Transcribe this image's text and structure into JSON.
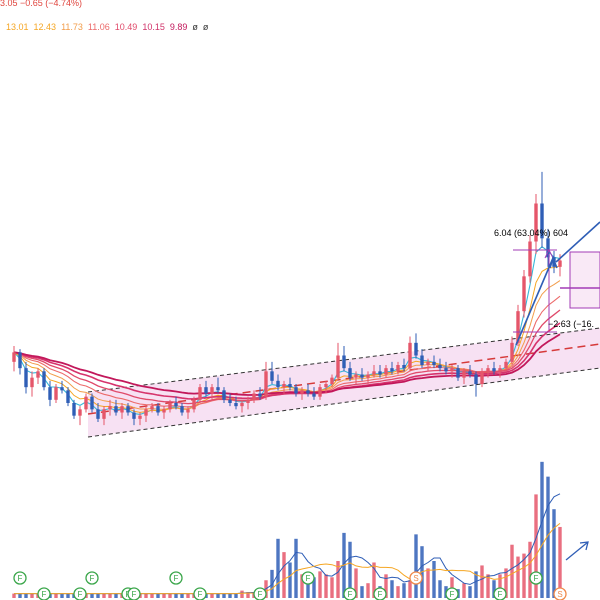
{
  "header": {
    "price_change": "3.05  −0.65 (−4.74%)",
    "ma_values": [
      {
        "text": "13.01",
        "color": "#f5a623"
      },
      {
        "text": "12.43",
        "color": "#f5a623"
      },
      {
        "text": "11.73",
        "color": "#f29d4b"
      },
      {
        "text": "11.06",
        "color": "#ec6a6a"
      },
      {
        "text": "10.49",
        "color": "#e04a6a"
      },
      {
        "text": "10.15",
        "color": "#d0346a"
      },
      {
        "text": "9.89",
        "color": "#c2185b"
      },
      {
        "text": "ø",
        "color": "#333333"
      },
      {
        "text": "ø",
        "color": "#333333"
      }
    ]
  },
  "annotations": {
    "rise_measure": "6.04 (63.04%) 604",
    "drop_measure": "−2.63 (−16."
  },
  "colors": {
    "up": "#e5566a",
    "down": "#2f5eb6",
    "channel_fill": "#f3d4ee",
    "ma_long": "#d6336c",
    "ma_short": "#f5a623",
    "measure": "#a23bb5",
    "arrow": "#2f5eb6",
    "event_badge": "#3aa64a"
  },
  "chart_data": {
    "type": "candlestick",
    "price_ylim": [
      6.5,
      15.5
    ],
    "candles": [
      [
        9.6,
        10.1,
        9.3,
        9.9
      ],
      [
        9.9,
        10.0,
        9.2,
        9.4
      ],
      [
        9.4,
        9.6,
        8.6,
        8.8
      ],
      [
        8.8,
        9.3,
        8.5,
        9.1
      ],
      [
        9.1,
        9.4,
        8.9,
        9.3
      ],
      [
        9.3,
        9.4,
        8.7,
        8.8
      ],
      [
        8.8,
        9.0,
        8.2,
        8.4
      ],
      [
        8.4,
        8.9,
        8.3,
        8.8
      ],
      [
        8.8,
        9.0,
        8.6,
        8.7
      ],
      [
        8.7,
        8.8,
        8.2,
        8.3
      ],
      [
        8.3,
        8.4,
        7.8,
        7.9
      ],
      [
        7.9,
        8.2,
        7.6,
        8.1
      ],
      [
        8.1,
        8.6,
        8.0,
        8.5
      ],
      [
        8.5,
        8.6,
        8.0,
        8.1
      ],
      [
        8.1,
        8.3,
        7.7,
        7.8
      ],
      [
        7.8,
        8.2,
        7.6,
        8.1
      ],
      [
        8.1,
        8.4,
        7.9,
        8.2
      ],
      [
        8.2,
        8.4,
        7.9,
        8.0
      ],
      [
        8.0,
        8.3,
        7.8,
        8.2
      ],
      [
        8.2,
        8.3,
        7.9,
        8.0
      ],
      [
        8.0,
        8.1,
        7.6,
        7.8
      ],
      [
        7.8,
        8.0,
        7.6,
        7.9
      ],
      [
        7.9,
        8.2,
        7.7,
        8.1
      ],
      [
        8.1,
        8.3,
        8.0,
        8.2
      ],
      [
        8.2,
        8.3,
        7.9,
        8.0
      ],
      [
        8.0,
        8.2,
        7.8,
        8.1
      ],
      [
        8.1,
        8.4,
        8.0,
        8.3
      ],
      [
        8.3,
        8.5,
        8.1,
        8.2
      ],
      [
        8.2,
        8.3,
        7.9,
        8.0
      ],
      [
        8.0,
        8.2,
        7.8,
        8.1
      ],
      [
        8.1,
        8.5,
        8.0,
        8.4
      ],
      [
        8.4,
        8.9,
        8.3,
        8.8
      ],
      [
        8.8,
        9.0,
        8.5,
        8.6
      ],
      [
        8.6,
        8.9,
        8.4,
        8.8
      ],
      [
        8.8,
        9.1,
        8.6,
        8.7
      ],
      [
        8.7,
        8.8,
        8.3,
        8.4
      ],
      [
        8.4,
        8.6,
        8.2,
        8.3
      ],
      [
        8.3,
        8.5,
        8.1,
        8.2
      ],
      [
        8.2,
        8.4,
        8.0,
        8.3
      ],
      [
        8.3,
        8.5,
        8.1,
        8.4
      ],
      [
        8.4,
        8.7,
        8.3,
        8.6
      ],
      [
        8.6,
        8.8,
        8.4,
        8.5
      ],
      [
        8.5,
        9.6,
        8.4,
        9.3
      ],
      [
        9.3,
        9.6,
        8.9,
        9.0
      ],
      [
        9.0,
        9.2,
        8.7,
        8.8
      ],
      [
        8.8,
        9.0,
        8.6,
        8.9
      ],
      [
        8.9,
        9.1,
        8.7,
        8.8
      ],
      [
        8.8,
        8.9,
        8.5,
        8.6
      ],
      [
        8.6,
        8.8,
        8.4,
        8.7
      ],
      [
        8.7,
        8.9,
        8.5,
        8.6
      ],
      [
        8.6,
        8.8,
        8.4,
        8.5
      ],
      [
        8.5,
        8.9,
        8.4,
        8.8
      ],
      [
        8.8,
        9.0,
        8.6,
        8.9
      ],
      [
        8.9,
        9.2,
        8.8,
        9.1
      ],
      [
        9.1,
        10.2,
        9.0,
        9.8
      ],
      [
        9.8,
        10.1,
        9.3,
        9.4
      ],
      [
        9.4,
        9.6,
        9.0,
        9.1
      ],
      [
        9.1,
        9.3,
        8.9,
        9.2
      ],
      [
        9.2,
        9.4,
        9.0,
        9.1
      ],
      [
        9.1,
        9.3,
        8.9,
        9.2
      ],
      [
        9.2,
        9.5,
        9.1,
        9.3
      ],
      [
        9.3,
        9.5,
        9.1,
        9.2
      ],
      [
        9.2,
        9.5,
        9.1,
        9.4
      ],
      [
        9.4,
        9.6,
        9.2,
        9.3
      ],
      [
        9.3,
        9.6,
        9.2,
        9.5
      ],
      [
        9.5,
        9.7,
        9.3,
        9.4
      ],
      [
        9.4,
        10.4,
        9.3,
        10.2
      ],
      [
        10.2,
        10.5,
        9.7,
        9.8
      ],
      [
        9.8,
        10.0,
        9.4,
        9.5
      ],
      [
        9.5,
        9.7,
        9.3,
        9.6
      ],
      [
        9.6,
        9.8,
        9.4,
        9.5
      ],
      [
        9.5,
        9.7,
        9.3,
        9.4
      ],
      [
        9.4,
        9.6,
        9.2,
        9.3
      ],
      [
        9.3,
        9.5,
        9.1,
        9.4
      ],
      [
        9.4,
        9.5,
        9.0,
        9.1
      ],
      [
        9.1,
        9.4,
        8.9,
        9.3
      ],
      [
        9.3,
        9.5,
        9.1,
        9.2
      ],
      [
        9.2,
        9.3,
        8.5,
        8.9
      ],
      [
        8.9,
        9.4,
        8.8,
        9.3
      ],
      [
        9.3,
        9.5,
        9.1,
        9.4
      ],
      [
        9.4,
        9.6,
        9.2,
        9.3
      ],
      [
        9.3,
        9.5,
        9.1,
        9.4
      ],
      [
        9.4,
        9.7,
        9.3,
        9.6
      ],
      [
        9.6,
        10.4,
        9.5,
        10.2
      ],
      [
        10.2,
        11.4,
        10.1,
        11.2
      ],
      [
        11.2,
        12.5,
        11.0,
        12.3
      ],
      [
        12.3,
        13.6,
        12.1,
        13.4
      ],
      [
        13.4,
        14.9,
        13.0,
        14.6
      ],
      [
        14.6,
        15.6,
        13.2,
        13.5
      ],
      [
        13.5,
        13.8,
        12.6,
        12.9
      ],
      [
        12.9,
        13.1,
        12.4,
        12.6
      ],
      [
        12.6,
        13.0,
        12.3,
        12.8
      ]
    ],
    "volume_ylim": [
      0,
      100
    ],
    "volumes": [
      3,
      3,
      3,
      3,
      3,
      3,
      3,
      3,
      3,
      3,
      3,
      3,
      3,
      3,
      3,
      3,
      3,
      3,
      3,
      3,
      3,
      3,
      3,
      3,
      3,
      3,
      3,
      3,
      3,
      3,
      3,
      3,
      3,
      3,
      3,
      3,
      3,
      3,
      5,
      4,
      4,
      6,
      12,
      19,
      40,
      31,
      24,
      40,
      16,
      12,
      14,
      18,
      16,
      14,
      25,
      44,
      38,
      20,
      8,
      10,
      24,
      8,
      16,
      12,
      8,
      10,
      12,
      43,
      35,
      20,
      25,
      12,
      8,
      14,
      6,
      10,
      8,
      18,
      22,
      16,
      12,
      16,
      20,
      36,
      28,
      30,
      38,
      70,
      92,
      82,
      60,
      48
    ],
    "events": [
      {
        "label": "F",
        "index": 1
      },
      {
        "label": "F",
        "index": 5
      },
      {
        "label": "F",
        "index": 11
      },
      {
        "label": "F",
        "index": 13
      },
      {
        "label": "F",
        "index": 19
      },
      {
        "label": "F",
        "index": 20
      },
      {
        "label": "F",
        "index": 27
      },
      {
        "label": "F",
        "index": 31
      },
      {
        "label": "F",
        "index": 41
      },
      {
        "label": "F",
        "index": 49
      },
      {
        "label": "F",
        "index": 56
      },
      {
        "label": "F",
        "index": 61
      },
      {
        "label": "S",
        "index": 67
      },
      {
        "label": "F",
        "index": 73
      },
      {
        "label": "F",
        "index": 81
      },
      {
        "label": "F",
        "index": 87
      },
      {
        "label": "S",
        "index": 91
      }
    ]
  }
}
